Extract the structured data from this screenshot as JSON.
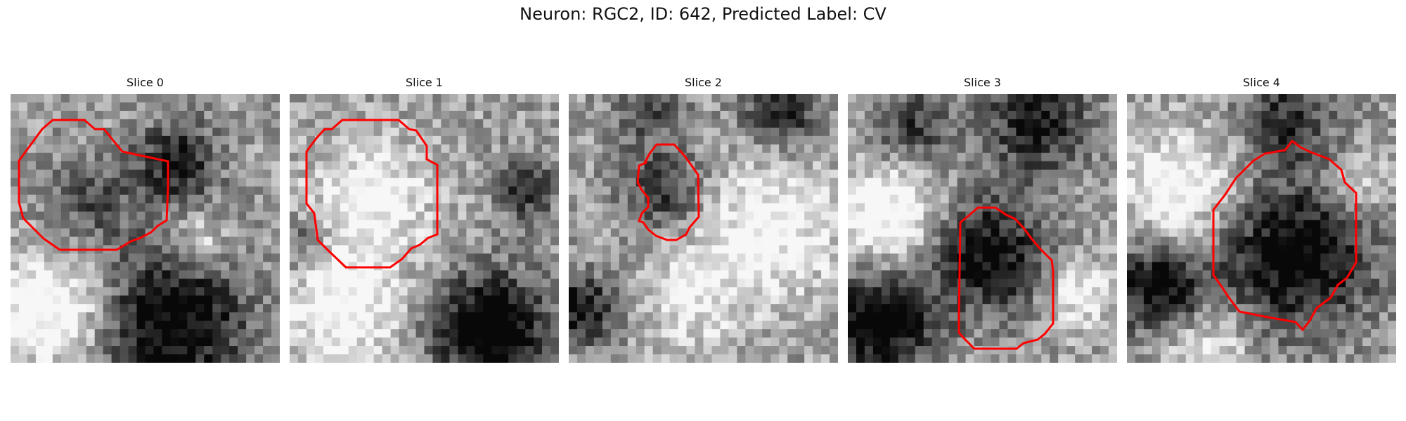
{
  "title": "Neuron: RGC2, ID: 642, Predicted Label: CV",
  "colors": {
    "contour": "#ff0000"
  },
  "panels": [
    {
      "label": "Slice 0",
      "seed": 11,
      "dark_blobs": [
        [
          0.62,
          0.25,
          0.14,
          0.55
        ],
        [
          0.6,
          0.85,
          0.26,
          0.7
        ],
        [
          0.3,
          0.4,
          0.16,
          0.3
        ]
      ],
      "bright_blobs": [
        [
          0.15,
          0.8,
          0.2,
          0.55
        ],
        [
          0.7,
          0.55,
          0.1,
          0.35
        ]
      ]
    },
    {
      "label": "Slice 1",
      "seed": 23,
      "dark_blobs": [
        [
          0.75,
          0.88,
          0.2,
          0.8
        ],
        [
          0.88,
          0.35,
          0.1,
          0.5
        ],
        [
          0.05,
          0.55,
          0.1,
          0.3
        ]
      ],
      "bright_blobs": [
        [
          0.3,
          0.4,
          0.22,
          0.4
        ],
        [
          0.2,
          0.8,
          0.2,
          0.45
        ]
      ]
    },
    {
      "label": "Slice 2",
      "seed": 37,
      "dark_blobs": [
        [
          0.35,
          0.35,
          0.14,
          0.45
        ],
        [
          0.05,
          0.8,
          0.12,
          0.6
        ],
        [
          0.8,
          0.05,
          0.14,
          0.5
        ],
        [
          0.3,
          0.05,
          0.12,
          0.35
        ]
      ],
      "bright_blobs": [
        [
          0.75,
          0.5,
          0.25,
          0.4
        ],
        [
          0.45,
          0.75,
          0.18,
          0.3
        ]
      ]
    },
    {
      "label": "Slice 3",
      "seed": 41,
      "dark_blobs": [
        [
          0.52,
          0.6,
          0.2,
          0.65
        ],
        [
          0.12,
          0.85,
          0.18,
          0.75
        ],
        [
          0.7,
          0.1,
          0.18,
          0.55
        ],
        [
          0.25,
          0.12,
          0.14,
          0.4
        ]
      ],
      "bright_blobs": [
        [
          0.15,
          0.45,
          0.18,
          0.5
        ],
        [
          0.85,
          0.75,
          0.12,
          0.35
        ]
      ]
    },
    {
      "label": "Slice 4",
      "seed": 53,
      "dark_blobs": [
        [
          0.63,
          0.6,
          0.26,
          0.7
        ],
        [
          0.12,
          0.72,
          0.16,
          0.65
        ],
        [
          0.6,
          0.08,
          0.16,
          0.45
        ]
      ],
      "bright_blobs": [
        [
          0.2,
          0.35,
          0.2,
          0.45
        ],
        [
          0.85,
          0.35,
          0.12,
          0.3
        ],
        [
          0.3,
          0.95,
          0.15,
          0.35
        ]
      ]
    }
  ]
}
